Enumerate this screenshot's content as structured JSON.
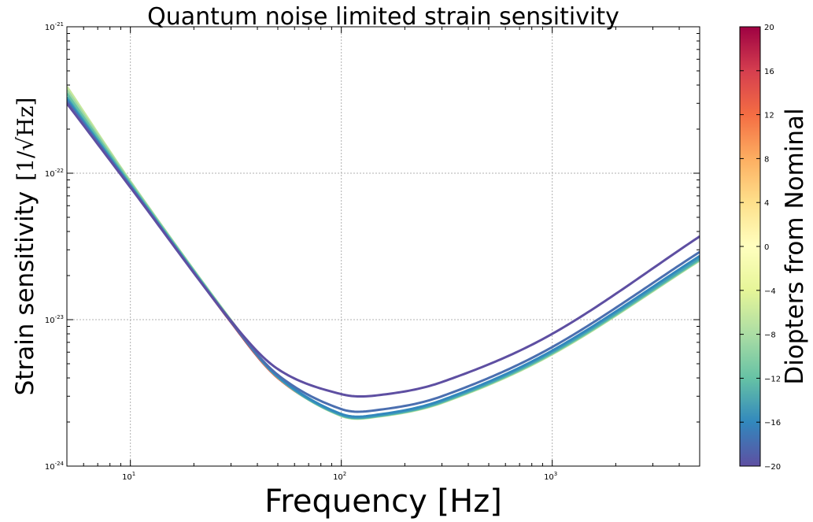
{
  "chart_data": {
    "type": "line",
    "title": "Quantum noise limited strain sensitivity",
    "xlabel": "Frequency [Hz]",
    "ylabel": "Strain sensitivity",
    "ylabel_unit": "[1/√Hz]",
    "x_scale": "log",
    "y_scale": "log",
    "xlim": [
      5,
      5000
    ],
    "ylim": [
      1e-24,
      1e-21
    ],
    "grid": true,
    "x_ticks": [
      {
        "value": 10,
        "base": "10",
        "exp": "1"
      },
      {
        "value": 100,
        "base": "10",
        "exp": "2"
      },
      {
        "value": 1000,
        "base": "10",
        "exp": "3"
      }
    ],
    "y_ticks": [
      {
        "value": 1e-24,
        "base": "10",
        "exp": "-24"
      },
      {
        "value": 1e-23,
        "base": "10",
        "exp": "-23"
      },
      {
        "value": 1e-22,
        "base": "10",
        "exp": "-22"
      },
      {
        "value": 1e-21,
        "base": "10",
        "exp": "-21"
      }
    ],
    "colorbar": {
      "label": "Diopters from Nominal",
      "min": -20,
      "max": 20,
      "ticks": [
        "20",
        "16",
        "12",
        "8",
        "4",
        "0",
        "−4",
        "−8",
        "−12",
        "−16",
        "−20"
      ],
      "colormap": "Spectral_r",
      "stops": [
        "#5e4fa2",
        "#3288bd",
        "#66c2a5",
        "#abdda4",
        "#e6f598",
        "#ffffbf",
        "#fee08b",
        "#fdae61",
        "#f46d43",
        "#d53e4f",
        "#9e0142"
      ]
    },
    "series": [
      {
        "diopter": 20,
        "color": "#9e0142",
        "x": [
          5,
          10,
          30,
          50,
          100,
          150,
          300,
          1000,
          5000
        ],
        "y": [
          3e-22,
          8.2e-23,
          9.6e-24,
          4e-24,
          2.25e-24,
          2.22e-24,
          2.75e-24,
          6e-24,
          2.6e-23
        ]
      },
      {
        "diopter": 12,
        "color": "#f46d43",
        "x": [
          5,
          10,
          30,
          50,
          100,
          150,
          300,
          1000,
          5000
        ],
        "y": [
          3.05e-22,
          8.3e-23,
          9.7e-24,
          4e-24,
          2.24e-24,
          2.21e-24,
          2.74e-24,
          5.95e-24,
          2.58e-23
        ]
      },
      {
        "diopter": -4,
        "color": "#c7e89d",
        "x": [
          5,
          10,
          30,
          50,
          100,
          150,
          300,
          1000,
          5000
        ],
        "y": [
          3.9e-22,
          8.8e-23,
          9.9e-24,
          4.05e-24,
          2.2e-24,
          2.18e-24,
          2.7e-24,
          5.8e-24,
          2.53e-23
        ]
      },
      {
        "diopter": -8,
        "color": "#9dd7a4",
        "x": [
          5,
          10,
          30,
          50,
          100,
          150,
          300,
          1000,
          5000
        ],
        "y": [
          3.7e-22,
          8.7e-23,
          9.9e-24,
          4.05e-24,
          2.21e-24,
          2.19e-24,
          2.72e-24,
          5.85e-24,
          2.55e-23
        ]
      },
      {
        "diopter": -12,
        "color": "#66c2a5",
        "x": [
          5,
          10,
          30,
          50,
          100,
          150,
          300,
          1000,
          5000
        ],
        "y": [
          3.5e-22,
          8.5e-23,
          9.8e-24,
          4.05e-24,
          2.22e-24,
          2.2e-24,
          2.73e-24,
          5.9e-24,
          2.57e-23
        ]
      },
      {
        "diopter": -14,
        "color": "#46a5b5",
        "x": [
          5,
          10,
          30,
          50,
          100,
          150,
          300,
          1000,
          5000
        ],
        "y": [
          3.3e-22,
          8.3e-23,
          9.75e-24,
          4.05e-24,
          2.23e-24,
          2.21e-24,
          2.76e-24,
          6e-24,
          2.62e-23
        ]
      },
      {
        "diopter": -16,
        "color": "#3288bd",
        "x": [
          5,
          10,
          30,
          50,
          100,
          150,
          300,
          1000,
          5000
        ],
        "y": [
          3.2e-22,
          8.2e-23,
          9.7e-24,
          4.1e-24,
          2.27e-24,
          2.25e-24,
          2.82e-24,
          6.15e-24,
          2.72e-23
        ]
      },
      {
        "diopter": -18,
        "color": "#4b6fb0",
        "x": [
          5,
          10,
          30,
          50,
          100,
          150,
          300,
          1000,
          5000
        ],
        "y": [
          3.1e-22,
          8.1e-23,
          9.7e-24,
          4.2e-24,
          2.45e-24,
          2.42e-24,
          3e-24,
          6.5e-24,
          2.9e-23
        ]
      },
      {
        "diopter": -20,
        "color": "#5e4fa2",
        "x": [
          5,
          10,
          30,
          50,
          100,
          150,
          300,
          1000,
          5000
        ],
        "y": [
          3e-22,
          8e-23,
          9.8e-24,
          4.6e-24,
          3.1e-24,
          3.05e-24,
          3.75e-24,
          8e-24,
          3.7e-23
        ]
      }
    ]
  }
}
